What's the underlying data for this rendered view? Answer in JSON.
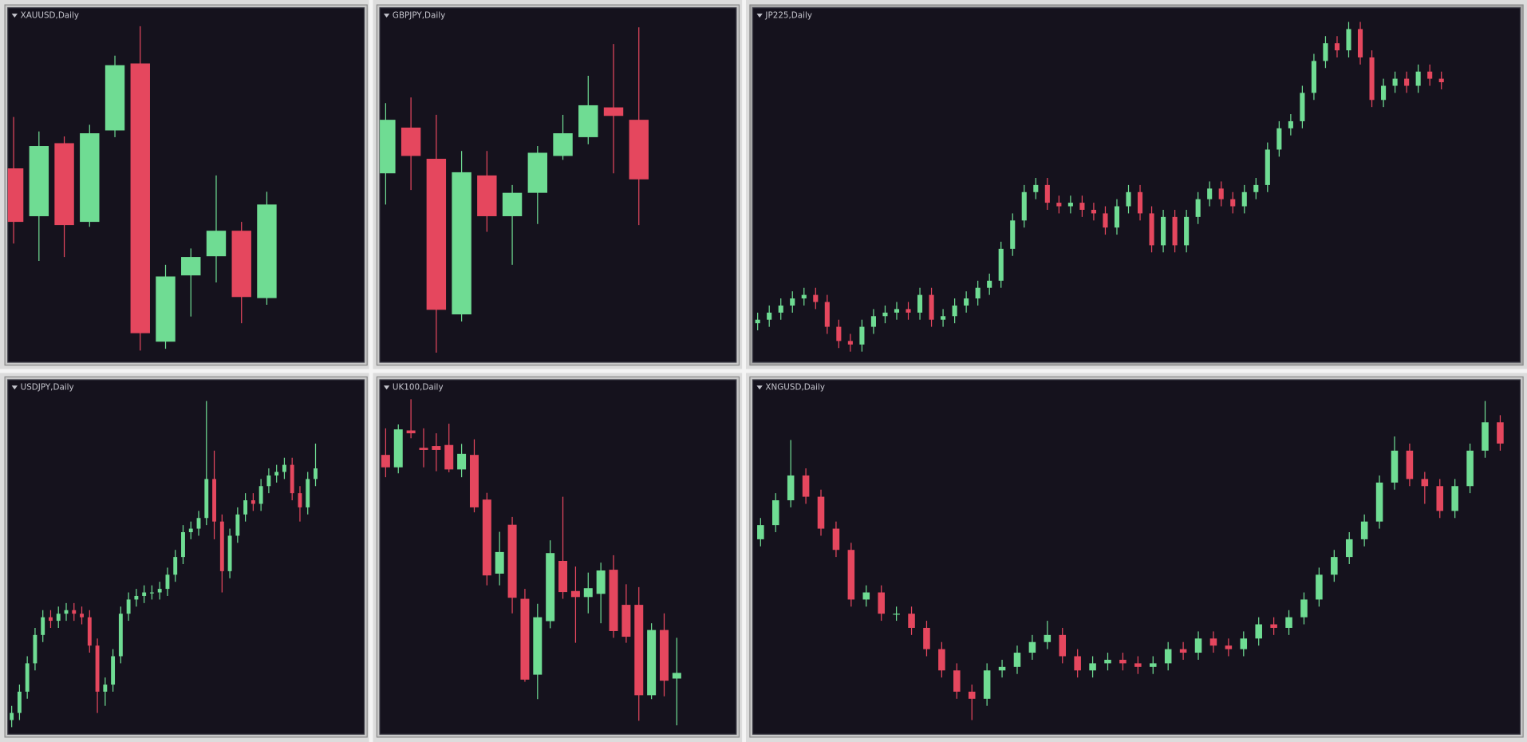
{
  "chart_data": [
    {
      "type": "candlestick",
      "title": "XAUUSD,Daily",
      "ylim": [
        0,
        100
      ],
      "up_color": "#6fdc93",
      "down_color": "#e5475e",
      "open": [
        54.7,
        41.2,
        61.8,
        39.6,
        65.4,
        84.3,
        5.8,
        24.5,
        29.9,
        37.1,
        18.1
      ],
      "high": [
        69.2,
        65.1,
        63.7,
        67.0,
        86.5,
        94.8,
        27.5,
        32.1,
        52.7,
        39.6,
        48.1
      ],
      "low": [
        33.5,
        28.6,
        29.7,
        38.2,
        63.5,
        3.3,
        3.8,
        12.9,
        22.5,
        11.0,
        16.2
      ],
      "close": [
        39.6,
        61.0,
        38.7,
        64.6,
        83.8,
        8.2,
        24.2,
        29.7,
        37.1,
        18.4,
        44.5
      ]
    },
    {
      "type": "candlestick",
      "title": "GBPJPY,Daily",
      "ylim": [
        0,
        100
      ],
      "up_color": "#6fdc93",
      "down_color": "#e5475e",
      "open": [
        53.3,
        66.2,
        57.4,
        13.5,
        52.7,
        41.2,
        47.8,
        58.2,
        63.5,
        71.9,
        68.4
      ],
      "high": [
        73.1,
        74.7,
        69.8,
        59.6,
        59.6,
        50.0,
        61.0,
        69.8,
        80.8,
        89.8,
        94.5
      ],
      "low": [
        44.5,
        48.6,
        2.7,
        11.5,
        36.8,
        27.5,
        39.0,
        57.1,
        61.5,
        53.3,
        38.7
      ],
      "close": [
        68.4,
        58.2,
        14.8,
        53.6,
        41.2,
        47.8,
        59.1,
        64.6,
        72.5,
        69.5,
        51.6
      ]
    },
    {
      "type": "candlestick",
      "title": "JP225,Daily",
      "ylim": [
        0,
        100
      ],
      "up_color": "#6fdc93",
      "down_color": "#e5475e",
      "open": [
        11,
        12,
        14,
        16,
        18,
        19,
        17,
        10,
        6,
        5,
        10,
        13,
        14,
        15,
        14,
        19,
        12,
        13,
        16,
        18,
        21,
        23,
        32,
        40,
        48,
        50,
        45,
        44,
        45,
        43,
        42,
        38,
        44,
        48,
        42,
        33,
        41,
        33,
        41,
        46,
        49,
        46,
        44,
        48,
        50,
        60,
        66,
        68,
        76,
        85,
        90,
        88,
        94,
        86,
        74,
        78,
        80,
        78,
        82,
        80
      ],
      "high": [
        14,
        16,
        18,
        20,
        21,
        21,
        19,
        12,
        8,
        12,
        15,
        16,
        17,
        17,
        21,
        21,
        15,
        18,
        20,
        23,
        25,
        34,
        42,
        50,
        52,
        52,
        47,
        47,
        47,
        45,
        44,
        46,
        50,
        50,
        44,
        43,
        43,
        43,
        48,
        51,
        51,
        48,
        50,
        52,
        62,
        68,
        70,
        78,
        87,
        92,
        92,
        96,
        96,
        88,
        80,
        82,
        82,
        84,
        84,
        82
      ],
      "low": [
        9,
        10,
        12,
        14,
        16,
        15,
        8,
        4,
        3,
        3,
        8,
        11,
        12,
        12,
        12,
        10,
        10,
        11,
        14,
        16,
        19,
        21,
        30,
        38,
        46,
        43,
        42,
        42,
        41,
        40,
        36,
        36,
        42,
        40,
        31,
        31,
        31,
        31,
        39,
        44,
        44,
        42,
        42,
        46,
        48,
        58,
        64,
        66,
        74,
        83,
        86,
        86,
        84,
        72,
        72,
        76,
        76,
        76,
        78,
        77
      ],
      "close": [
        12,
        14,
        16,
        18,
        19,
        17,
        10,
        6,
        5,
        10,
        13,
        14,
        15,
        14,
        19,
        12,
        13,
        16,
        18,
        21,
        23,
        32,
        40,
        48,
        50,
        45,
        44,
        45,
        43,
        42,
        38,
        44,
        48,
        42,
        33,
        41,
        33,
        41,
        46,
        49,
        46,
        44,
        48,
        50,
        60,
        66,
        68,
        76,
        85,
        90,
        88,
        94,
        86,
        74,
        78,
        80,
        78,
        82,
        80,
        79
      ]
    },
    {
      "type": "candlestick",
      "title": "USDJPY,Daily",
      "ylim": [
        0,
        100
      ],
      "up_color": "#6fdc93",
      "down_color": "#e5475e",
      "open": [
        4,
        6,
        12,
        20,
        28,
        33,
        32,
        34,
        35,
        34,
        33,
        25,
        12,
        14,
        22,
        34,
        38,
        39,
        40,
        40,
        41,
        45,
        50,
        57,
        58,
        61,
        72,
        60,
        46,
        56,
        62,
        66,
        65,
        70,
        73,
        74,
        76,
        68,
        64,
        72
      ],
      "high": [
        8,
        14,
        22,
        30,
        35,
        35,
        36,
        37,
        37,
        36,
        35,
        27,
        16,
        24,
        36,
        40,
        41,
        42,
        42,
        43,
        47,
        52,
        59,
        60,
        63,
        94,
        80,
        62,
        58,
        64,
        68,
        68,
        72,
        75,
        76,
        78,
        78,
        70,
        74,
        82
      ],
      "low": [
        2,
        4,
        10,
        18,
        26,
        30,
        30,
        32,
        32,
        31,
        23,
        6,
        8,
        12,
        20,
        32,
        36,
        37,
        38,
        38,
        39,
        43,
        48,
        55,
        56,
        59,
        55,
        40,
        44,
        54,
        60,
        63,
        63,
        68,
        71,
        72,
        66,
        60,
        62,
        70
      ],
      "close": [
        6,
        12,
        20,
        28,
        33,
        32,
        34,
        35,
        34,
        33,
        25,
        12,
        14,
        22,
        34,
        38,
        39,
        40,
        40,
        41,
        45,
        50,
        57,
        58,
        61,
        72,
        60,
        46,
        56,
        62,
        66,
        65,
        70,
        73,
        74,
        76,
        68,
        64,
        72,
        75
      ]
    },
    {
      "type": "candlestick",
      "title": "UK100,Daily",
      "ylim": [
        0,
        100
      ],
      "up_color": "#6fdc93",
      "down_color": "#e5475e",
      "open": [
        78.8,
        75.3,
        85.7,
        80.8,
        81.3,
        81.6,
        74.7,
        78.8,
        66.2,
        45.3,
        59.1,
        38.2,
        16.8,
        31.9,
        48.9,
        40.4,
        38.7,
        39.6,
        46.4,
        36.5,
        36.5,
        11.0,
        29.4,
        15.7
      ],
      "high": [
        86.3,
        87.4,
        94.5,
        86.3,
        84.9,
        87.6,
        81.9,
        83.2,
        68.1,
        57.1,
        61.3,
        41.0,
        36.8,
        54.7,
        67.0,
        47.3,
        45.6,
        48.4,
        50.5,
        42.3,
        41.5,
        31.3,
        34.1,
        27.2
      ],
      "low": [
        72.5,
        73.6,
        83.5,
        75.3,
        74.2,
        73.9,
        72.5,
        62.6,
        42.0,
        42.0,
        34.1,
        14.8,
        9.9,
        29.9,
        38.2,
        25.8,
        34.1,
        31.3,
        27.2,
        25.8,
        3.8,
        9.9,
        10.7,
        2.5
      ],
      "close": [
        75.3,
        86.0,
        84.9,
        80.2,
        80.2,
        74.7,
        79.1,
        64.0,
        44.8,
        51.4,
        38.5,
        15.4,
        33.0,
        51.1,
        40.1,
        38.7,
        41.2,
        46.2,
        29.1,
        27.5,
        11.0,
        29.4,
        15.1,
        17.3
      ]
    },
    {
      "type": "candlestick",
      "title": "XNGUSD,Daily",
      "ylim": [
        0,
        100
      ],
      "up_color": "#6fdc93",
      "down_color": "#e5475e",
      "open": [
        55,
        59,
        66,
        73,
        67,
        58,
        52,
        38,
        40,
        34,
        34,
        30,
        24,
        18,
        12,
        10,
        18,
        19,
        23,
        26,
        28,
        22,
        18,
        20,
        21,
        20,
        19,
        20,
        24,
        23,
        27,
        25,
        24,
        27,
        31,
        30,
        33,
        38,
        45,
        50,
        55,
        60,
        71,
        80,
        72,
        70,
        63,
        70,
        80,
        88
      ],
      "high": [
        61,
        68,
        83,
        75,
        69,
        60,
        54,
        42,
        42,
        36,
        36,
        32,
        26,
        20,
        14,
        20,
        21,
        25,
        28,
        32,
        30,
        24,
        22,
        23,
        23,
        22,
        22,
        26,
        26,
        29,
        29,
        27,
        29,
        33,
        33,
        35,
        40,
        47,
        52,
        57,
        62,
        73,
        84,
        82,
        74,
        72,
        72,
        82,
        94,
        90
      ],
      "low": [
        53,
        57,
        64,
        65,
        56,
        50,
        36,
        36,
        32,
        32,
        28,
        22,
        16,
        10,
        4,
        8,
        16,
        17,
        21,
        24,
        20,
        16,
        16,
        18,
        18,
        17,
        17,
        18,
        21,
        21,
        23,
        22,
        22,
        25,
        28,
        28,
        31,
        36,
        43,
        48,
        53,
        58,
        69,
        70,
        65,
        61,
        61,
        68,
        78,
        80
      ],
      "close": [
        59,
        66,
        73,
        67,
        58,
        52,
        38,
        40,
        34,
        34,
        30,
        24,
        18,
        12,
        10,
        18,
        19,
        23,
        26,
        28,
        22,
        18,
        20,
        21,
        20,
        19,
        20,
        24,
        23,
        27,
        25,
        24,
        27,
        31,
        30,
        33,
        38,
        45,
        50,
        55,
        60,
        71,
        80,
        72,
        70,
        63,
        70,
        80,
        88,
        82
      ]
    }
  ]
}
